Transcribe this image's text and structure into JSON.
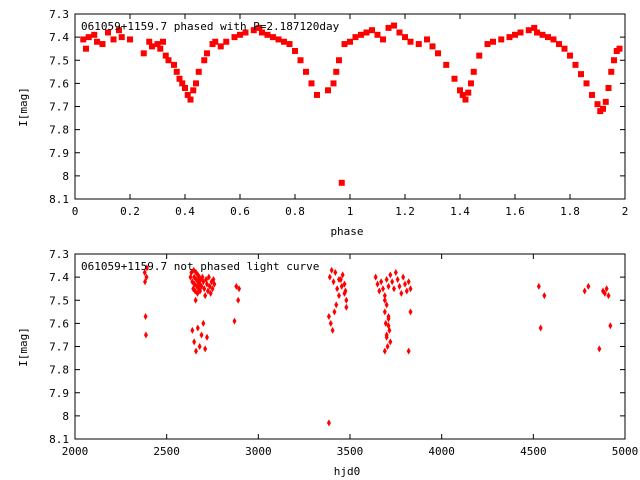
{
  "chart_data": [
    {
      "type": "scatter",
      "title": "061059+1159.7 phased with P=2.187120day",
      "xlabel": "phase",
      "ylabel": "I[mag]",
      "xlim": [
        0,
        2
      ],
      "ylim": [
        8.1,
        7.3
      ],
      "y_inverted": true,
      "xticks": [
        "0",
        "0.2",
        "0.4",
        "0.6",
        "0.8",
        "1",
        "1.2",
        "1.4",
        "1.6",
        "1.8",
        "2"
      ],
      "yticks": [
        "7.3",
        "7.4",
        "7.5",
        "7.6",
        "7.7",
        "7.8",
        "7.9",
        "8",
        "8.1"
      ],
      "marker": "filled-square",
      "color": "#ff0000",
      "grid": false,
      "x": [
        0.03,
        0.04,
        0.05,
        0.07,
        0.08,
        0.1,
        0.12,
        0.14,
        0.16,
        0.17,
        0.2,
        0.25,
        0.27,
        0.28,
        0.3,
        0.31,
        0.32,
        0.33,
        0.34,
        0.36,
        0.37,
        0.38,
        0.39,
        0.4,
        0.41,
        0.42,
        0.43,
        0.44,
        0.45,
        0.47,
        0.48,
        0.5,
        0.51,
        0.53,
        0.55,
        0.58,
        0.6,
        0.62,
        0.65,
        0.67,
        0.68,
        0.7,
        0.72,
        0.74,
        0.76,
        0.78,
        0.8,
        0.82,
        0.84,
        0.86,
        0.88,
        0.92,
        0.94,
        0.95,
        0.96,
        0.97,
        0.98,
        1.0,
        1.02,
        1.04,
        1.06,
        1.08,
        1.1,
        1.12,
        1.14,
        1.16,
        1.18,
        1.2,
        1.22,
        1.25,
        1.28,
        1.3,
        1.32,
        1.35,
        1.38,
        1.4,
        1.41,
        1.42,
        1.43,
        1.44,
        1.45,
        1.47,
        1.5,
        1.52,
        1.55,
        1.58,
        1.6,
        1.62,
        1.65,
        1.67,
        1.68,
        1.7,
        1.72,
        1.74,
        1.76,
        1.78,
        1.8,
        1.82,
        1.84,
        1.86,
        1.88,
        1.9,
        1.91,
        1.92,
        1.93,
        1.94,
        1.95,
        1.96,
        1.97,
        1.98
      ],
      "y": [
        7.41,
        7.45,
        7.4,
        7.39,
        7.42,
        7.43,
        7.38,
        7.41,
        7.37,
        7.4,
        7.41,
        7.47,
        7.42,
        7.44,
        7.43,
        7.45,
        7.42,
        7.48,
        7.5,
        7.52,
        7.55,
        7.58,
        7.6,
        7.62,
        7.65,
        7.67,
        7.63,
        7.6,
        7.55,
        7.5,
        7.47,
        7.43,
        7.42,
        7.44,
        7.42,
        7.4,
        7.39,
        7.38,
        7.37,
        7.36,
        7.38,
        7.39,
        7.4,
        7.41,
        7.42,
        7.43,
        7.46,
        7.5,
        7.55,
        7.6,
        7.65,
        7.63,
        7.6,
        7.55,
        7.5,
        8.03,
        7.43,
        7.42,
        7.4,
        7.39,
        7.38,
        7.37,
        7.39,
        7.41,
        7.36,
        7.35,
        7.38,
        7.4,
        7.42,
        7.43,
        7.41,
        7.44,
        7.47,
        7.52,
        7.58,
        7.63,
        7.65,
        7.67,
        7.64,
        7.6,
        7.55,
        7.48,
        7.43,
        7.42,
        7.41,
        7.4,
        7.39,
        7.38,
        7.37,
        7.36,
        7.38,
        7.39,
        7.4,
        7.41,
        7.43,
        7.45,
        7.48,
        7.52,
        7.56,
        7.6,
        7.65,
        7.69,
        7.72,
        7.71,
        7.68,
        7.62,
        7.55,
        7.5,
        7.46,
        7.45
      ]
    },
    {
      "type": "scatter",
      "title": "061059+1159.7 not phased light curve",
      "xlabel": "hjd0",
      "ylabel": "I[mag]",
      "xlim": [
        2000,
        5000
      ],
      "ylim": [
        8.1,
        7.3
      ],
      "y_inverted": true,
      "xticks": [
        "2000",
        "2500",
        "3000",
        "3500",
        "4000",
        "4500",
        "5000"
      ],
      "yticks": [
        "7.3",
        "7.4",
        "7.5",
        "7.6",
        "7.7",
        "7.8",
        "7.9",
        "8",
        "8.1"
      ],
      "marker": "filled-diamond",
      "color": "#ff0000",
      "grid": false,
      "x": [
        2380,
        2382,
        2385,
        2387,
        2390,
        2392,
        2630,
        2635,
        2640,
        2645,
        2648,
        2650,
        2652,
        2655,
        2658,
        2660,
        2662,
        2665,
        2668,
        2670,
        2672,
        2675,
        2678,
        2680,
        2682,
        2685,
        2690,
        2695,
        2700,
        2705,
        2710,
        2715,
        2720,
        2725,
        2730,
        2735,
        2740,
        2745,
        2750,
        2755,
        2760,
        2640,
        2650,
        2660,
        2670,
        2680,
        2690,
        2700,
        2710,
        2720,
        2870,
        2880,
        2890,
        2895,
        3390,
        3400,
        3410,
        3420,
        3430,
        3440,
        3450,
        3460,
        3470,
        3475,
        3480,
        3385,
        3395,
        3405,
        3415,
        3425,
        3440,
        3455,
        3470,
        3480,
        3385,
        3640,
        3650,
        3660,
        3670,
        3680,
        3690,
        3700,
        3710,
        3720,
        3730,
        3740,
        3750,
        3760,
        3770,
        3780,
        3790,
        3800,
        3810,
        3820,
        3830,
        3690,
        3695,
        3700,
        3705,
        3710,
        3715,
        3720,
        3690,
        3700,
        3710,
        3690,
        3700,
        3710,
        3820,
        3830,
        4530,
        4540,
        4560,
        4780,
        4800,
        4860,
        4880,
        4890,
        4900,
        4910,
        4920
      ],
      "y": [
        7.38,
        7.42,
        7.57,
        7.65,
        7.4,
        7.36,
        7.4,
        7.38,
        7.42,
        7.45,
        7.37,
        7.4,
        7.43,
        7.46,
        7.5,
        7.38,
        7.41,
        7.44,
        7.47,
        7.39,
        7.42,
        7.45,
        7.4,
        7.43,
        7.46,
        7.41,
        7.44,
        7.4,
        7.42,
        7.45,
        7.48,
        7.41,
        7.43,
        7.46,
        7.4,
        7.44,
        7.47,
        7.42,
        7.45,
        7.41,
        7.43,
        7.63,
        7.68,
        7.72,
        7.62,
        7.7,
        7.65,
        7.6,
        7.71,
        7.66,
        7.59,
        7.44,
        7.5,
        7.45,
        7.4,
        7.37,
        7.42,
        7.38,
        7.45,
        7.48,
        7.41,
        7.39,
        7.43,
        7.46,
        7.5,
        7.57,
        7.6,
        7.63,
        7.55,
        7.52,
        7.41,
        7.44,
        7.47,
        7.53,
        8.03,
        7.4,
        7.43,
        7.46,
        7.42,
        7.45,
        7.48,
        7.41,
        7.44,
        7.39,
        7.42,
        7.45,
        7.38,
        7.41,
        7.44,
        7.47,
        7.4,
        7.43,
        7.46,
        7.42,
        7.45,
        7.55,
        7.6,
        7.65,
        7.7,
        7.58,
        7.63,
        7.68,
        7.5,
        7.52,
        7.57,
        7.72,
        7.66,
        7.61,
        7.72,
        7.55,
        7.44,
        7.62,
        7.48,
        7.46,
        7.44,
        7.71,
        7.46,
        7.47,
        7.45,
        7.48,
        7.61
      ]
    }
  ]
}
